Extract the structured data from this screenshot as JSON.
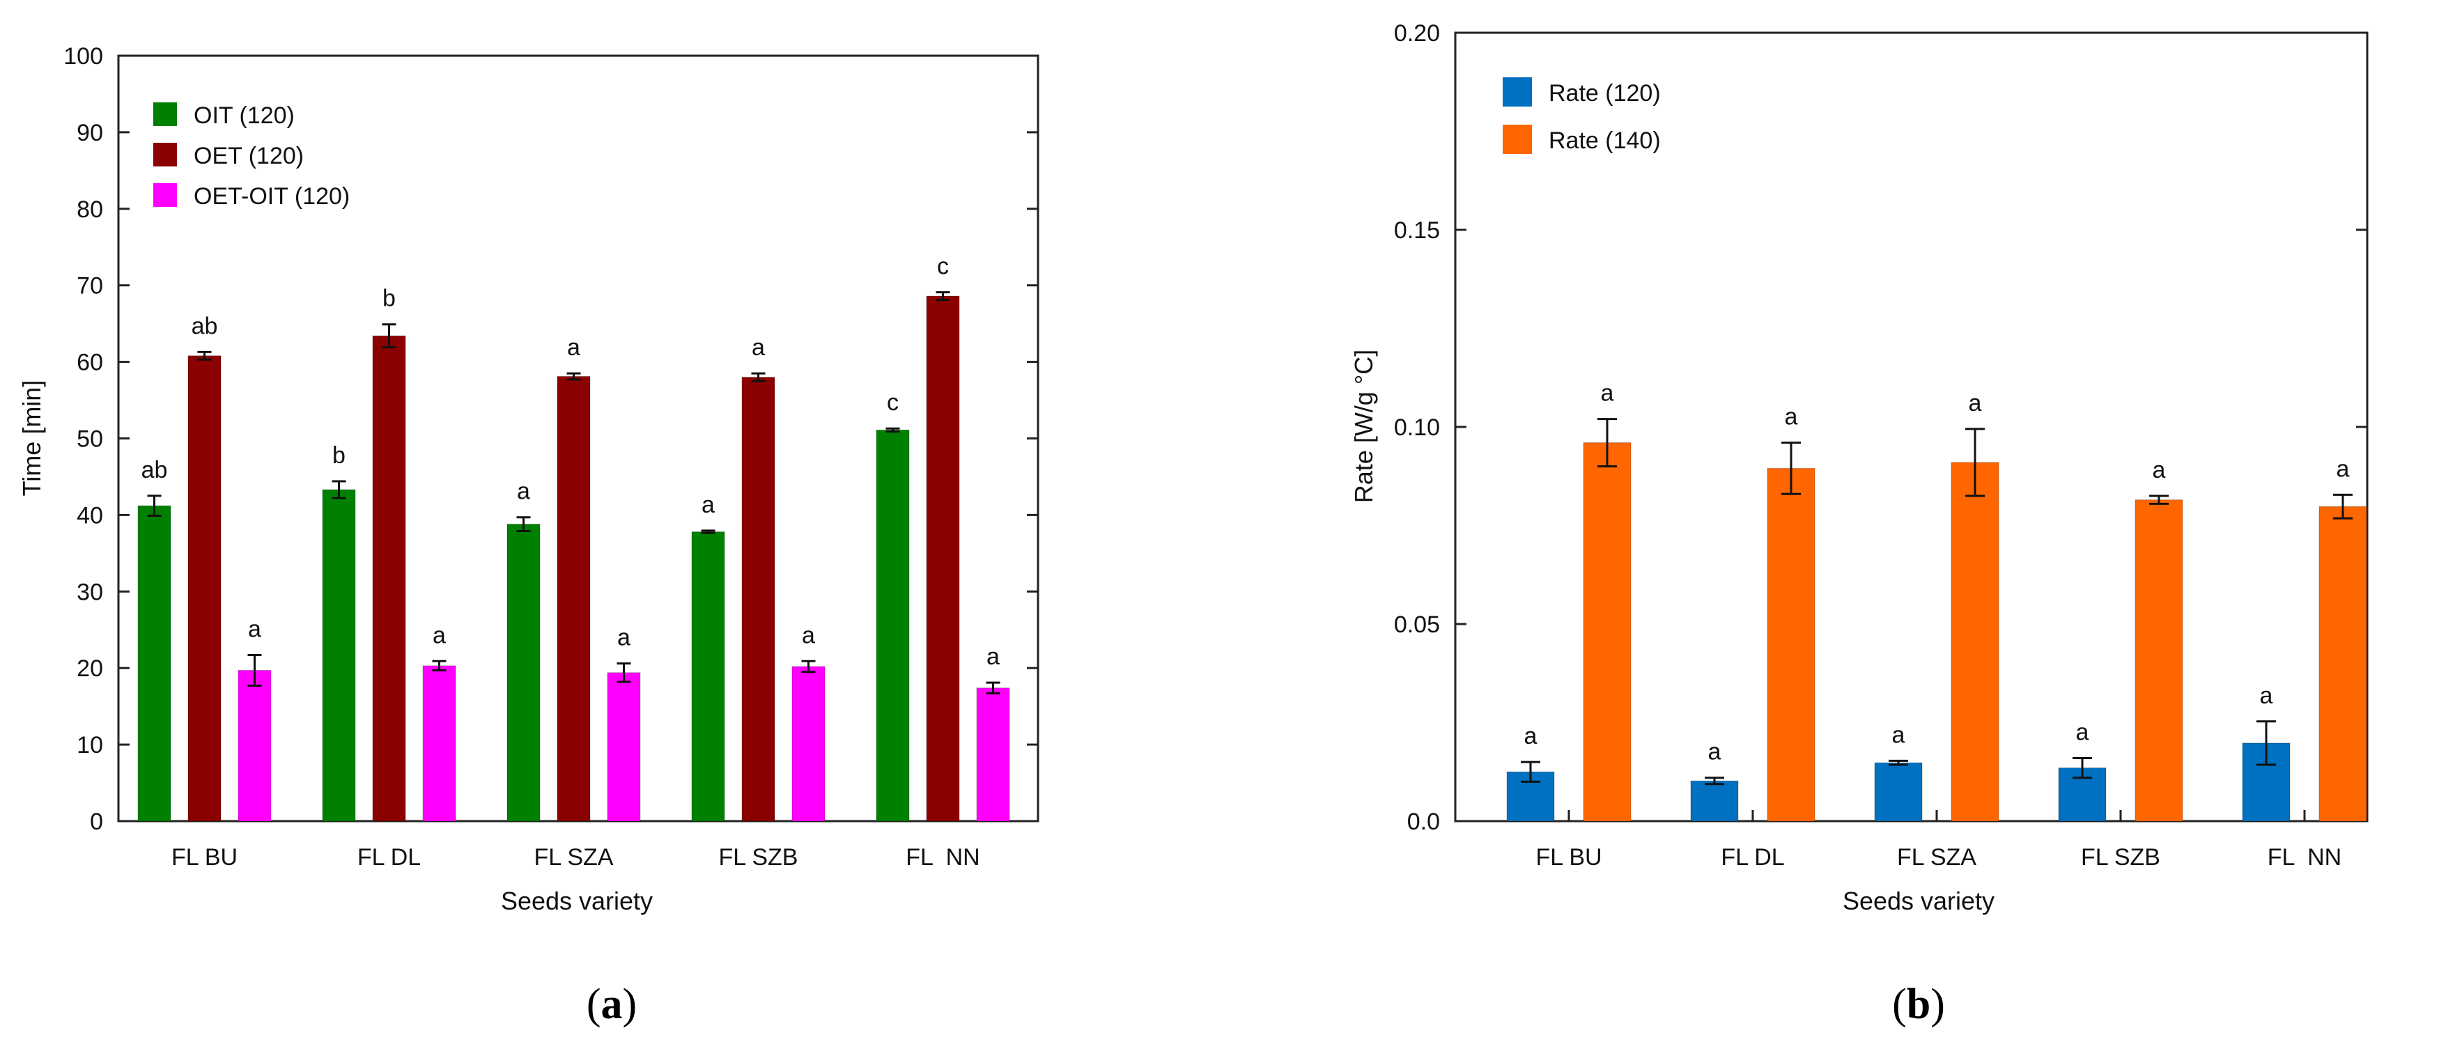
{
  "chart_data": [
    {
      "type": "bar",
      "panel_label": "a",
      "categories": [
        "FL BU",
        "FL DL",
        "FL SZA",
        "FL SZB",
        "FL  NN"
      ],
      "xlabel": "Seeds variety",
      "ylabel": "Time [min]",
      "ylim": [
        0,
        100
      ],
      "yticks": [
        0,
        10,
        20,
        30,
        40,
        50,
        60,
        70,
        80,
        90,
        100
      ],
      "ytick_labels": [
        "0",
        "10",
        "20",
        "30",
        "40",
        "50",
        "60",
        "70",
        "80",
        "90",
        "100"
      ],
      "legend_position": "top-left",
      "series": [
        {
          "name": "OIT (120)",
          "color": "#008000",
          "values": [
            41.2,
            43.3,
            38.8,
            37.8,
            51.1
          ],
          "errors": [
            1.3,
            1.1,
            0.9,
            0.15,
            0.2
          ],
          "letters": [
            "ab",
            "b",
            "a",
            "a",
            "c"
          ]
        },
        {
          "name": "OET (120)",
          "color": "#8b0000",
          "values": [
            60.8,
            63.4,
            58.1,
            58.0,
            68.6
          ],
          "errors": [
            0.5,
            1.5,
            0.4,
            0.5,
            0.5
          ],
          "letters": [
            "ab",
            "b",
            "a",
            "a",
            "c"
          ]
        },
        {
          "name": "OET-OIT (120)",
          "color": "#ff00ff",
          "values": [
            19.7,
            20.3,
            19.4,
            20.2,
            17.4
          ],
          "errors": [
            2.0,
            0.6,
            1.2,
            0.7,
            0.7
          ],
          "letters": [
            "a",
            "a",
            "a",
            "a",
            "a"
          ]
        }
      ]
    },
    {
      "type": "bar",
      "panel_label": "b",
      "categories": [
        "FL BU",
        "FL DL",
        "FL SZA",
        "FL SZB",
        "FL  NN"
      ],
      "xlabel": "Seeds variety",
      "ylabel": "Rate [W/g °C]",
      "ylim": [
        0,
        0.2
      ],
      "yticks": [
        0,
        0.05,
        0.1,
        0.15,
        0.2
      ],
      "ytick_labels": [
        "0.0",
        "0.05",
        "0.10",
        "0.15",
        "0.20"
      ],
      "legend_position": "top-left",
      "series": [
        {
          "name": "Rate (120)",
          "color": "#0070c0",
          "values": [
            0.0125,
            0.0102,
            0.0148,
            0.0135,
            0.0198
          ],
          "errors": [
            0.0025,
            0.0008,
            0.0005,
            0.0025,
            0.0055
          ],
          "letters": [
            "a",
            "a",
            "a",
            "a",
            "a"
          ]
        },
        {
          "name": "Rate (140)",
          "color": "#ff6600",
          "values": [
            0.096,
            0.0895,
            0.091,
            0.0815,
            0.0798
          ],
          "errors": [
            0.006,
            0.0065,
            0.0085,
            0.001,
            0.003
          ],
          "letters": [
            "a",
            "a",
            "a",
            "a",
            "a"
          ]
        }
      ]
    }
  ]
}
